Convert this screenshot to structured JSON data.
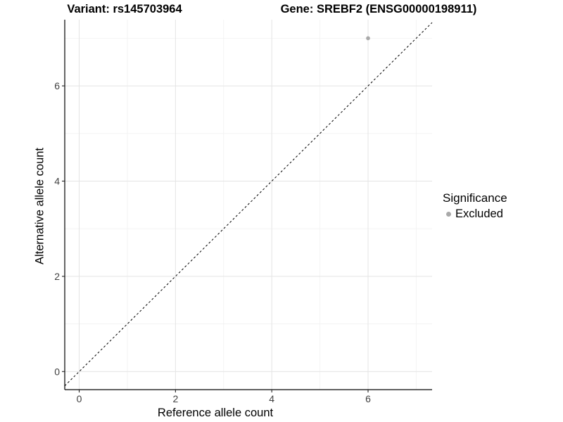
{
  "titles": {
    "variant": "Variant: rs145703964",
    "gene": "Gene: SREBF2 (ENSG00000198911)"
  },
  "axes": {
    "x_label": "Reference allele count",
    "y_label": "Alternative allele count"
  },
  "legend": {
    "title": "Significance",
    "items": [
      {
        "label": "Excluded",
        "color": "#a9a9a9"
      }
    ]
  },
  "colors": {
    "background": "#ffffff",
    "grid_major": "#e4e4e4",
    "grid_minor": "#f1f1f1",
    "axis_line": "#000000",
    "tick_mark": "#222222",
    "tick_text": "#404040",
    "identity_line": "#000000",
    "point": "#a9a9a9"
  },
  "chart_data": {
    "type": "scatter",
    "title_left": "Variant: rs145703964",
    "title_right": "Gene: SREBF2 (ENSG00000198911)",
    "xlabel": "Reference allele count",
    "ylabel": "Alternative allele count",
    "xlim": [
      -0.3,
      7.33
    ],
    "ylim": [
      -0.38,
      7.39
    ],
    "x_ticks": [
      0,
      2,
      4,
      6
    ],
    "y_ticks": [
      0,
      2,
      4,
      6
    ],
    "x_minor_gridlines": [
      1,
      3,
      5,
      7
    ],
    "y_minor_gridlines": [
      1,
      3,
      5,
      7
    ],
    "grid": "major and minor gridlines on white background",
    "legend_position": "right",
    "legend_title": "Significance",
    "series": [
      {
        "name": "Excluded",
        "color": "#a9a9a9",
        "points": [
          [
            6,
            7
          ]
        ]
      }
    ],
    "identity_line": {
      "equation": "y = x",
      "style": "dashed",
      "color": "#000000"
    }
  }
}
